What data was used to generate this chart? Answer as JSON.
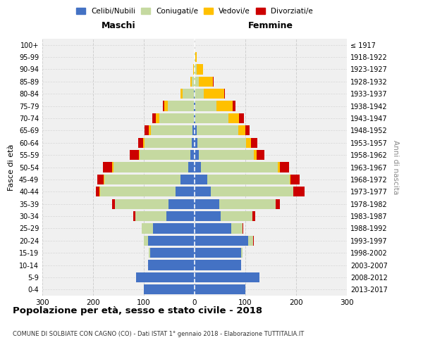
{
  "age_groups": [
    "0-4",
    "5-9",
    "10-14",
    "15-19",
    "20-24",
    "25-29",
    "30-34",
    "35-39",
    "40-44",
    "45-49",
    "50-54",
    "55-59",
    "60-64",
    "65-69",
    "70-74",
    "75-79",
    "80-84",
    "85-89",
    "90-94",
    "95-99",
    "100+"
  ],
  "birth_years": [
    "2013-2017",
    "2008-2012",
    "2003-2007",
    "1998-2002",
    "1993-1997",
    "1988-1992",
    "1983-1987",
    "1978-1982",
    "1973-1977",
    "1968-1972",
    "1963-1967",
    "1958-1962",
    "1953-1957",
    "1948-1952",
    "1943-1947",
    "1938-1942",
    "1933-1937",
    "1928-1932",
    "1923-1927",
    "1918-1922",
    "≤ 1917"
  ],
  "males": {
    "celibi": [
      100,
      115,
      92,
      88,
      92,
      82,
      55,
      52,
      38,
      28,
      12,
      8,
      6,
      4,
      2,
      1,
      1,
      0,
      0,
      0,
      0
    ],
    "coniugati": [
      0,
      0,
      0,
      2,
      8,
      22,
      62,
      105,
      148,
      150,
      148,
      100,
      92,
      82,
      68,
      52,
      22,
      6,
      2,
      0,
      0
    ],
    "vedovi": [
      0,
      0,
      0,
      0,
      0,
      0,
      0,
      0,
      1,
      1,
      2,
      2,
      3,
      4,
      6,
      7,
      5,
      2,
      1,
      0,
      0
    ],
    "divorziati": [
      0,
      0,
      0,
      0,
      0,
      0,
      4,
      5,
      8,
      12,
      18,
      18,
      10,
      8,
      8,
      2,
      0,
      0,
      0,
      0,
      0
    ]
  },
  "females": {
    "nubili": [
      100,
      128,
      92,
      92,
      105,
      72,
      52,
      48,
      32,
      25,
      12,
      8,
      6,
      4,
      2,
      1,
      0,
      0,
      0,
      0,
      0
    ],
    "coniugate": [
      0,
      0,
      0,
      2,
      10,
      22,
      62,
      112,
      162,
      162,
      152,
      108,
      95,
      82,
      65,
      42,
      18,
      8,
      4,
      2,
      0
    ],
    "vedove": [
      0,
      0,
      0,
      0,
      0,
      0,
      0,
      0,
      1,
      2,
      4,
      6,
      10,
      14,
      20,
      32,
      40,
      28,
      12,
      2,
      0
    ],
    "divorziate": [
      0,
      0,
      0,
      0,
      2,
      2,
      5,
      8,
      22,
      18,
      18,
      15,
      12,
      8,
      10,
      5,
      2,
      1,
      0,
      0,
      0
    ]
  },
  "colors": {
    "celibi": "#4472c4",
    "coniugati": "#c5d9a0",
    "vedovi": "#ffc000",
    "divorziati": "#cc0000"
  },
  "xlim": 300,
  "title": "Popolazione per età, sesso e stato civile - 2018",
  "subtitle": "COMUNE DI SOLBIATE CON CAGNO (CO) - Dati ISTAT 1° gennaio 2018 - Elaborazione TUTTITALIA.IT",
  "ylabel": "Fasce di età",
  "ylabel2": "Anni di nascita",
  "xlabel_left": "Maschi",
  "xlabel_right": "Femmine",
  "bg_color": "#f0f0f0",
  "grid_color": "#cccccc"
}
